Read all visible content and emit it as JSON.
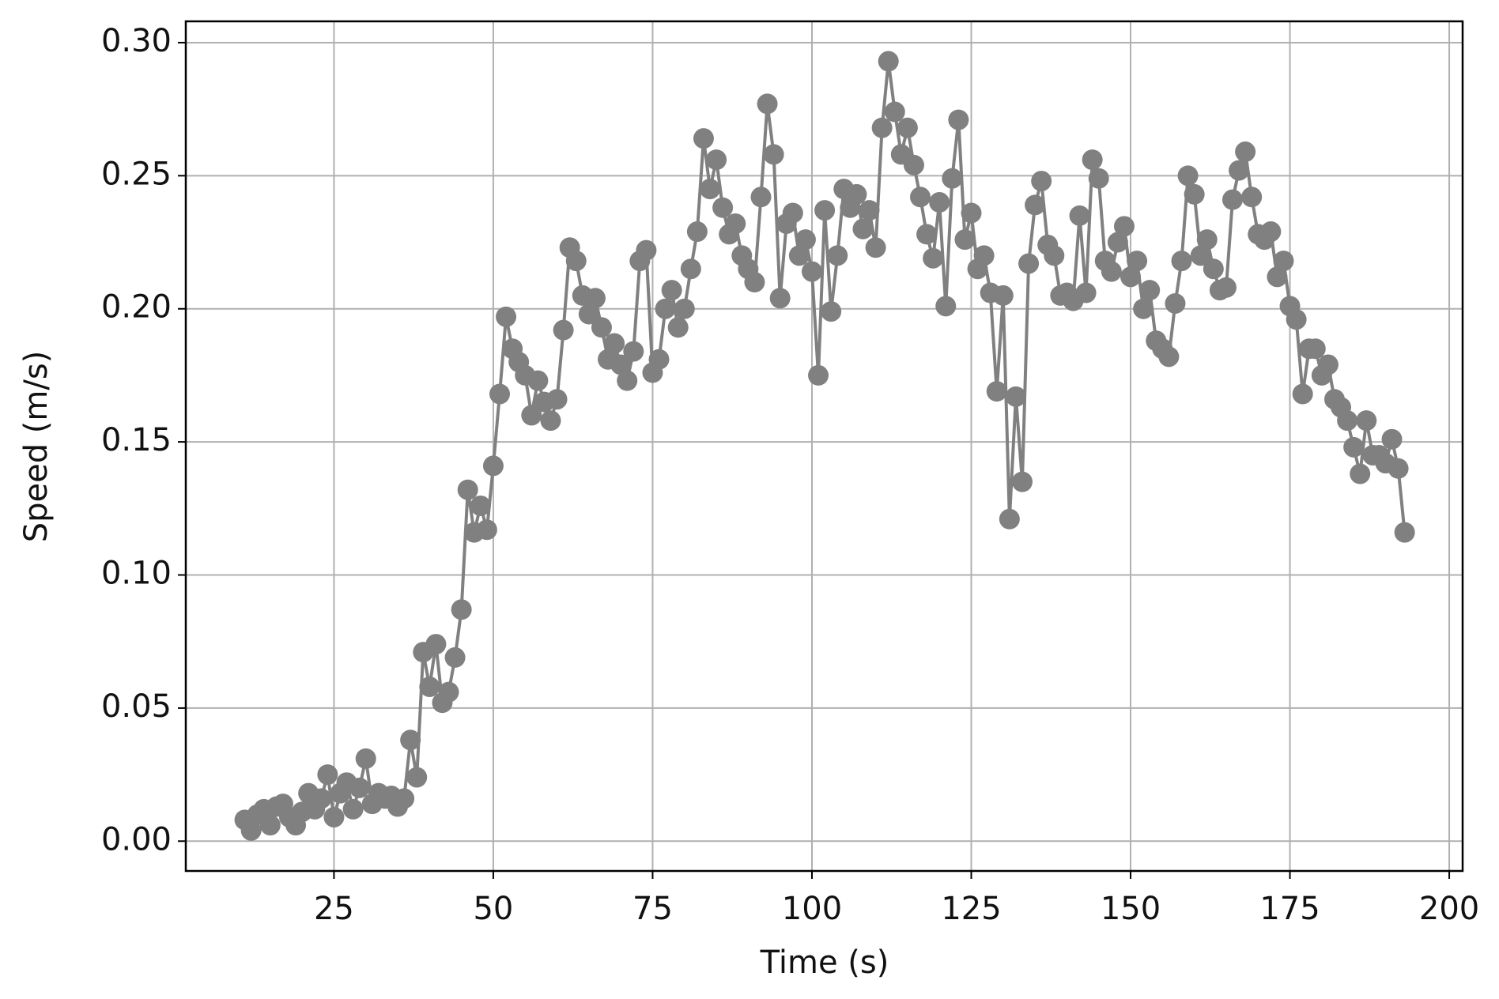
{
  "chart_data": {
    "type": "line",
    "xlabel": "Time (s)",
    "ylabel": "Speed (m/s)",
    "x": [
      11,
      12,
      13,
      14,
      15,
      16,
      17,
      18,
      19,
      20,
      21,
      22,
      23,
      24,
      25,
      26,
      27,
      28,
      29,
      30,
      31,
      32,
      33,
      34,
      35,
      36,
      37,
      38,
      39,
      40,
      41,
      42,
      43,
      44,
      45,
      46,
      47,
      48,
      49,
      50,
      51,
      52,
      53,
      54,
      55,
      56,
      57,
      58,
      59,
      60,
      61,
      62,
      63,
      64,
      65,
      66,
      67,
      68,
      69,
      70,
      71,
      72,
      73,
      74,
      75,
      76,
      77,
      78,
      79,
      80,
      81,
      82,
      83,
      84,
      85,
      86,
      87,
      88,
      89,
      90,
      91,
      92,
      93,
      94,
      95,
      96,
      97,
      98,
      99,
      100,
      101,
      102,
      103,
      104,
      105,
      106,
      107,
      108,
      109,
      110,
      111,
      112,
      113,
      114,
      115,
      116,
      117,
      118,
      119,
      120,
      121,
      122,
      123,
      124,
      125,
      126,
      127,
      128,
      129,
      130,
      131,
      132,
      133,
      134,
      135,
      136,
      137,
      138,
      139,
      140,
      141,
      142,
      143,
      144,
      145,
      146,
      147,
      148,
      149,
      150,
      151,
      152,
      153,
      154,
      155,
      156,
      157,
      158,
      159,
      160,
      161,
      162,
      163,
      164,
      165,
      166,
      167,
      168,
      169,
      170,
      171,
      172,
      173,
      174,
      175,
      176,
      177,
      178,
      179,
      180,
      181,
      182,
      183,
      184,
      185,
      186,
      187,
      188,
      189,
      190,
      191,
      192,
      193
    ],
    "series": [
      {
        "color": "#808080",
        "values": [
          0.008,
          0.004,
          0.01,
          0.012,
          0.006,
          0.013,
          0.014,
          0.009,
          0.006,
          0.011,
          0.018,
          0.012,
          0.016,
          0.025,
          0.009,
          0.018,
          0.022,
          0.012,
          0.02,
          0.031,
          0.014,
          0.018,
          0.016,
          0.017,
          0.013,
          0.016,
          0.038,
          0.024,
          0.071,
          0.058,
          0.074,
          0.052,
          0.056,
          0.069,
          0.087,
          0.132,
          0.116,
          0.126,
          0.117,
          0.141,
          0.168,
          0.197,
          0.185,
          0.18,
          0.175,
          0.16,
          0.173,
          0.165,
          0.158,
          0.166,
          0.192,
          0.223,
          0.218,
          0.205,
          0.198,
          0.204,
          0.193,
          0.181,
          0.187,
          0.179,
          0.173,
          0.184,
          0.218,
          0.222,
          0.176,
          0.181,
          0.2,
          0.207,
          0.193,
          0.2,
          0.215,
          0.229,
          0.264,
          0.245,
          0.256,
          0.238,
          0.228,
          0.232,
          0.22,
          0.215,
          0.21,
          0.242,
          0.277,
          0.258,
          0.204,
          0.232,
          0.236,
          0.22,
          0.226,
          0.214,
          0.175,
          0.237,
          0.199,
          0.22,
          0.245,
          0.238,
          0.243,
          0.23,
          0.237,
          0.223,
          0.268,
          0.293,
          0.274,
          0.258,
          0.268,
          0.254,
          0.242,
          0.228,
          0.219,
          0.24,
          0.201,
          0.249,
          0.271,
          0.226,
          0.236,
          0.215,
          0.22,
          0.206,
          0.169,
          0.205,
          0.121,
          0.167,
          0.135,
          0.217,
          0.239,
          0.248,
          0.224,
          0.22,
          0.205,
          0.206,
          0.203,
          0.235,
          0.206,
          0.256,
          0.249,
          0.218,
          0.214,
          0.225,
          0.231,
          0.212,
          0.218,
          0.2,
          0.207,
          0.188,
          0.185,
          0.182,
          0.202,
          0.218,
          0.25,
          0.243,
          0.22,
          0.226,
          0.215,
          0.207,
          0.208,
          0.241,
          0.252,
          0.259,
          0.242,
          0.228,
          0.226,
          0.229,
          0.212,
          0.218,
          0.201,
          0.196,
          0.168,
          0.185,
          0.185,
          0.175,
          0.179,
          0.166,
          0.163,
          0.158,
          0.148,
          0.138,
          0.158,
          0.145,
          0.145,
          0.142,
          0.151,
          0.14,
          0.116
        ]
      }
    ],
    "xlim": [
      1.75,
      202.1
    ],
    "xticks": [
      25,
      50,
      75,
      100,
      125,
      150,
      175,
      200
    ],
    "ylim": [
      -0.0112,
      0.308
    ],
    "yticks": [
      {
        "value": 0,
        "label": "0.00"
      },
      0.05,
      {
        "value": 0.1,
        "label": "0.10"
      },
      0.15,
      {
        "value": 0.2,
        "label": "0.20"
      },
      0.25,
      {
        "value": 0.3,
        "label": "0.30"
      }
    ],
    "grid": true
  }
}
